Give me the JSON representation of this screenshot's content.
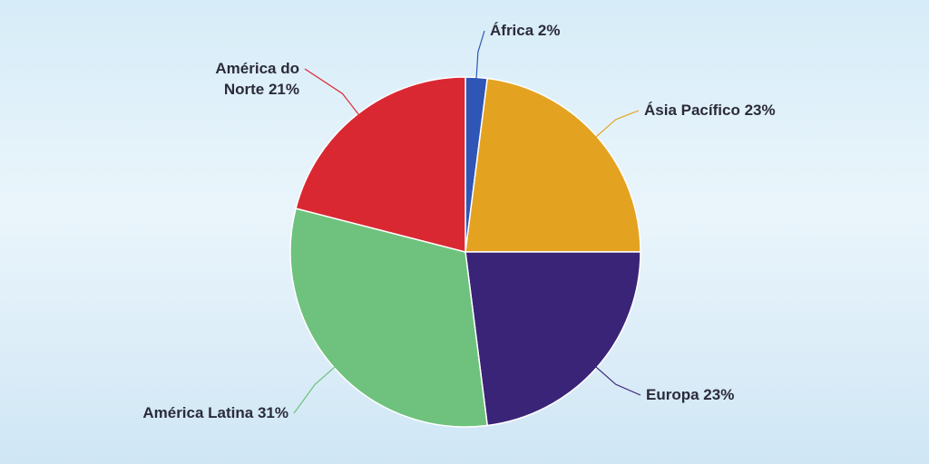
{
  "chart_data": {
    "type": "pie",
    "categories": [
      "África",
      "Ásia Pacífico",
      "Europa",
      "América Latina",
      "América do Norte"
    ],
    "values": [
      2,
      23,
      23,
      31,
      21
    ],
    "value_labels": [
      "2%",
      "23%",
      "23%",
      "31%",
      "21%"
    ],
    "colors": [
      "#2f56b6",
      "#e4a221",
      "#3a2478",
      "#6ec27d",
      "#da2833"
    ]
  }
}
